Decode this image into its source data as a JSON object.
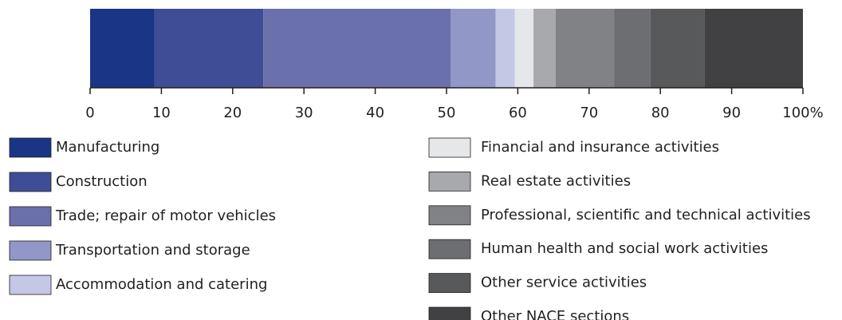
{
  "chart_data": {
    "type": "bar",
    "orientation": "horizontal",
    "stacked": true,
    "series": [
      {
        "name": "Manufacturing",
        "color": "#1a3585",
        "values": [
          9.0
        ]
      },
      {
        "name": "Construction",
        "color": "#3e4d96",
        "values": [
          15.3
        ]
      },
      {
        "name": "Trade; repair of motor vehicles",
        "color": "#6a70ab",
        "values": [
          26.3
        ]
      },
      {
        "name": "Transportation and storage",
        "color": "#9197c7",
        "values": [
          6.3
        ]
      },
      {
        "name": "Accommodation and catering",
        "color": "#c5c8e5",
        "values": [
          2.7
        ]
      },
      {
        "name": "Financial and insurance activities",
        "color": "#e6e7e8",
        "values": [
          2.6
        ]
      },
      {
        "name": "Real estate activities",
        "color": "#a7a9ac",
        "values": [
          3.1
        ]
      },
      {
        "name": "Professional, scientific and technical activities",
        "color": "#808285",
        "values": [
          8.2
        ]
      },
      {
        "name": "Human health and social work activities",
        "color": "#6d6e71",
        "values": [
          5.1
        ]
      },
      {
        "name": "Other service activities",
        "color": "#58595b",
        "values": [
          7.6
        ]
      },
      {
        "name": "Other NACE sections",
        "color": "#414042",
        "values": [
          13.8
        ]
      }
    ],
    "xlim": [
      0,
      100
    ],
    "xticks": [
      0,
      10,
      20,
      30,
      40,
      50,
      60,
      70,
      80,
      90,
      {
        "value": 100,
        "label": "100%"
      }
    ]
  }
}
